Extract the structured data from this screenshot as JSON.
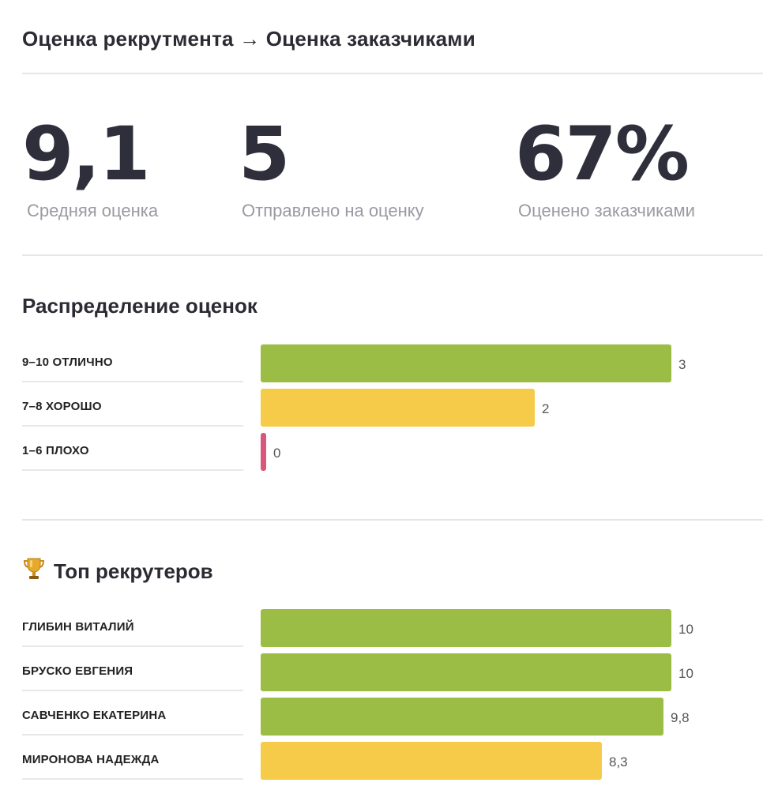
{
  "page": {
    "title": "Оценка рекрутмента → Оценка заказчиками"
  },
  "stats": [
    {
      "value": "9,1",
      "label": "Средняя оценка"
    },
    {
      "value": "5",
      "label": "Отправлено на оценку"
    },
    {
      "value": "67%",
      "label": "Оценено заказчиками"
    }
  ],
  "sections": {
    "distribution_title": "Распределение оценок",
    "top_title": "Топ рекрутеров",
    "top_icon": "trophy-icon"
  },
  "colors": {
    "green": "#9bbd45",
    "yellow": "#f6cb4a",
    "pink": "#d9577a"
  },
  "chart_data": [
    {
      "type": "bar",
      "title": "Распределение оценок",
      "orientation": "horizontal",
      "categories": [
        "9–10 ОТЛИЧНО",
        "7–8 ХОРОШО",
        "1–6 ПЛОХО"
      ],
      "values": [
        3,
        2,
        0
      ],
      "value_labels": [
        "3",
        "2",
        "0"
      ],
      "bar_colors": [
        "#9bbd45",
        "#f6cb4a",
        "#d9577a"
      ],
      "xlim": [
        0,
        3
      ],
      "grid": false
    },
    {
      "type": "bar",
      "title": "Топ рекрутеров",
      "orientation": "horizontal",
      "categories": [
        "ГЛИБИН ВИТАЛИЙ",
        "БРУСКО ЕВГЕНИЯ",
        "САВЧЕНКО ЕКАТЕРИНА",
        "МИРОНОВА НАДЕЖДА"
      ],
      "values": [
        10,
        10,
        9.8,
        8.3
      ],
      "value_labels": [
        "10",
        "10",
        "9,8",
        "8,3"
      ],
      "bar_colors": [
        "#9bbd45",
        "#9bbd45",
        "#9bbd45",
        "#f6cb4a"
      ],
      "xlim": [
        0,
        10
      ],
      "grid": false
    }
  ]
}
